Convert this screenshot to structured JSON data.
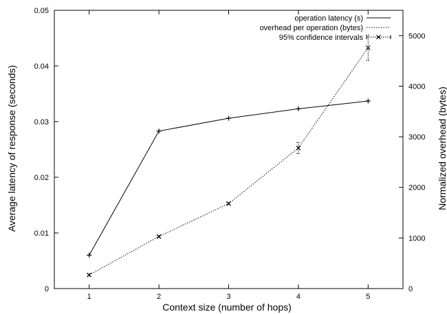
{
  "chart_data": {
    "type": "line",
    "xlabel": "Context size (number of hops)",
    "ylabel_left": "Average latency of response (seconds)",
    "ylabel_right": "Normalized overhead (bytes)",
    "x_ticks": [
      "1",
      "2",
      "3",
      "4",
      "5"
    ],
    "xlim": [
      0.5,
      5.5
    ],
    "y_left_ticks": [
      "0",
      "0.01",
      "0.02",
      "0.03",
      "0.04",
      "0.05"
    ],
    "ylim_left": [
      0,
      0.05
    ],
    "y_right_ticks": [
      "0",
      "1000",
      "2000",
      "3000",
      "4000",
      "5000"
    ],
    "ylim_right": [
      0,
      5500
    ],
    "grid": false,
    "legend_position": "top-right",
    "series": [
      {
        "name": "operation latency (s)",
        "axis": "left",
        "style": "solid",
        "marker": "plus",
        "x": [
          1,
          2,
          3,
          4,
          5
        ],
        "values": [
          0.006,
          0.0283,
          0.0306,
          0.0323,
          0.0337
        ]
      },
      {
        "name": "overhead per operation (bytes)",
        "axis": "right",
        "style": "dotted",
        "marker": "cross",
        "x": [
          1,
          2,
          3,
          4,
          5
        ],
        "values": [
          270,
          1030,
          1680,
          2780,
          4760
        ]
      }
    ],
    "confidence_intervals": {
      "name": "95% confidence intervals",
      "axis": "right",
      "x": [
        1,
        2,
        3,
        4,
        5
      ],
      "lower": [
        250,
        1010,
        1660,
        2670,
        4510
      ],
      "upper": [
        290,
        1050,
        1700,
        2890,
        5010
      ]
    }
  }
}
